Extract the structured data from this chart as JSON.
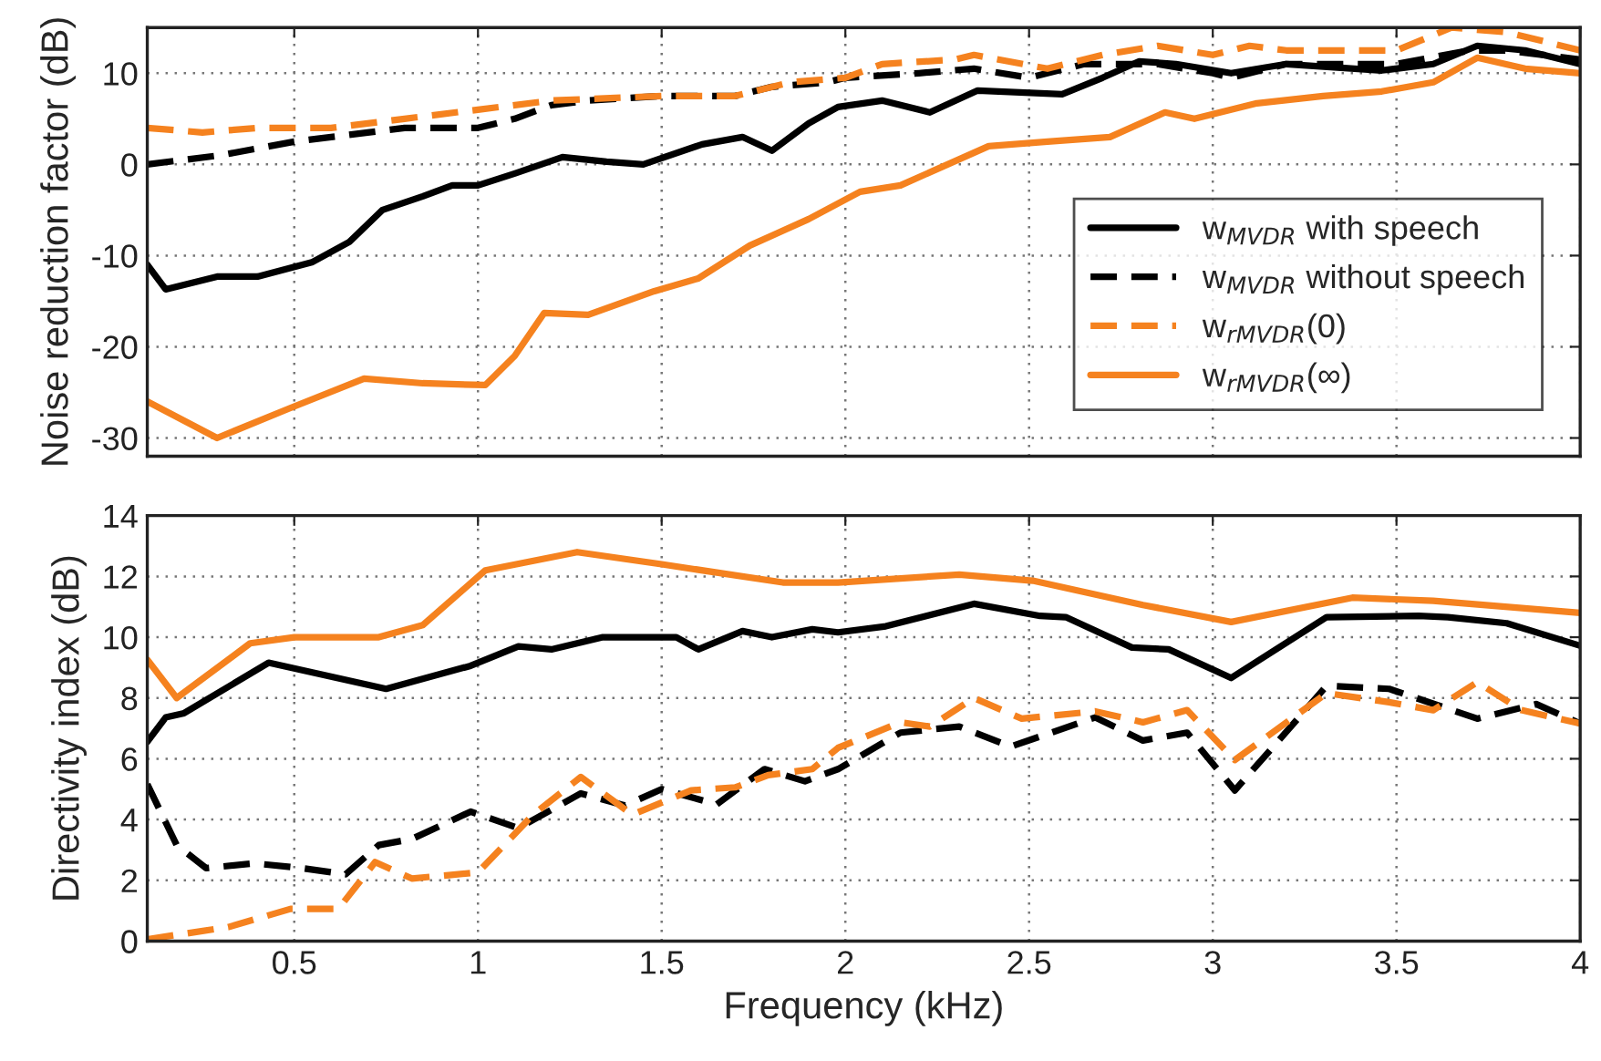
{
  "chart_data": [
    {
      "type": "line",
      "ylabel": "Noise reduction factor (dB)",
      "xlim": [
        0.1,
        4
      ],
      "ylim": [
        -32,
        15
      ],
      "xticks": [
        0.5,
        1,
        1.5,
        2,
        2.5,
        3,
        3.5,
        4
      ],
      "yticks": [
        -30,
        -20,
        -10,
        0,
        10
      ],
      "tick_labels": "y",
      "grid": true,
      "legend": "lower right",
      "marker": "none",
      "series": [
        {
          "name": "w$_{MVDR}$ with speech",
          "color": "#000000",
          "line_style": "solid",
          "x": [
            0.1,
            0.15,
            0.29,
            0.4,
            0.55,
            0.65,
            0.74,
            0.85,
            0.93,
            1.0,
            1.1,
            1.23,
            1.35,
            1.45,
            1.61,
            1.72,
            1.8,
            1.9,
            1.98,
            2.1,
            2.23,
            2.36,
            2.59,
            2.7,
            2.8,
            2.9,
            3.05,
            3.2,
            3.46,
            3.6,
            3.72,
            3.85,
            4.0
          ],
          "values": [
            -11,
            -13.7,
            -12.3,
            -12.3,
            -10.7,
            -8.5,
            -5,
            -3.5,
            -2.3,
            -2.3,
            -1,
            0.8,
            0.3,
            0,
            2.2,
            3,
            1.5,
            4.5,
            6.3,
            7,
            5.7,
            8.1,
            7.7,
            9.5,
            11.3,
            11,
            10,
            11,
            10.3,
            11,
            13,
            12.5,
            11
          ]
        },
        {
          "name": "w$_{MVDR}$ without speech",
          "color": "#000000",
          "line_style": "dashed",
          "x": [
            0.1,
            0.3,
            0.5,
            0.7,
            0.8,
            1.0,
            1.1,
            1.2,
            1.3,
            1.5,
            1.7,
            1.8,
            1.95,
            2.0,
            2.2,
            2.35,
            2.5,
            2.65,
            2.85,
            3.0,
            3.05,
            3.2,
            3.5,
            3.7,
            3.8,
            4.0
          ],
          "values": [
            0,
            1,
            2.5,
            3.5,
            4,
            4,
            5,
            6.5,
            7,
            7.5,
            7.5,
            8.5,
            9,
            9.5,
            10,
            10.5,
            9.5,
            11,
            11,
            10,
            9.5,
            11,
            11,
            12.5,
            12.5,
            11.5
          ]
        },
        {
          "name": "w$_{rMVDR}$(0)",
          "color": "#f5821f",
          "line_style": "dashed",
          "x": [
            0.1,
            0.25,
            0.4,
            0.6,
            0.8,
            1.0,
            1.2,
            1.5,
            1.7,
            1.85,
            2.0,
            2.1,
            2.3,
            2.35,
            2.55,
            2.7,
            2.85,
            3.0,
            3.1,
            3.2,
            3.5,
            3.65,
            3.8,
            4.0
          ],
          "values": [
            4,
            3.5,
            4,
            4,
            5,
            6,
            7,
            7.5,
            7.5,
            9,
            9.5,
            11,
            11.5,
            12,
            10.5,
            12,
            13,
            12,
            13,
            12.5,
            12.5,
            15,
            14.5,
            12.5
          ]
        },
        {
          "name": "w$_{rMVDR}$(∞)",
          "color": "#f5821f",
          "line_style": "solid",
          "x": [
            0.1,
            0.29,
            0.49,
            0.69,
            0.85,
            1.02,
            1.1,
            1.18,
            1.3,
            1.48,
            1.6,
            1.74,
            1.9,
            2.04,
            2.15,
            2.39,
            2.55,
            2.72,
            2.87,
            2.95,
            3.12,
            3.3,
            3.46,
            3.6,
            3.72,
            3.85,
            4.0
          ],
          "values": [
            -26,
            -30,
            -26.7,
            -23.5,
            -24,
            -24.2,
            -21,
            -16.3,
            -16.5,
            -13.9,
            -12.5,
            -8.9,
            -6,
            -3,
            -2.3,
            2,
            2.5,
            3,
            5.7,
            5,
            6.7,
            7.5,
            8,
            9,
            11.7,
            10.5,
            10
          ]
        }
      ]
    },
    {
      "type": "line",
      "xlabel": "Frequency (kHz)",
      "ylabel": "Directivity index (dB)",
      "xlim": [
        0.1,
        4
      ],
      "ylim": [
        0,
        14
      ],
      "xticks": [
        0.5,
        1,
        1.5,
        2,
        2.5,
        3,
        3.5,
        4
      ],
      "yticks": [
        0,
        2,
        4,
        6,
        8,
        10,
        12,
        14
      ],
      "grid": true,
      "marker": "none",
      "series": [
        {
          "color": "#000000",
          "line_style": "solid",
          "x": [
            0.1,
            0.15,
            0.2,
            0.43,
            0.75,
            0.98,
            1.11,
            1.2,
            1.34,
            1.54,
            1.6,
            1.72,
            1.8,
            1.91,
            1.98,
            2.11,
            2.35,
            2.53,
            2.6,
            2.78,
            2.88,
            3.05,
            3.31,
            3.56,
            3.64,
            3.8,
            4.0
          ],
          "values": [
            6.56,
            7.36,
            7.5,
            9.16,
            8.3,
            9.06,
            9.7,
            9.6,
            10,
            10,
            9.6,
            10.2,
            10,
            10.26,
            10.16,
            10.36,
            11.1,
            10.7,
            10.66,
            9.66,
            9.6,
            8.66,
            10.66,
            10.7,
            10.66,
            10.46,
            9.72
          ]
        },
        {
          "color": "#000000",
          "line_style": "dashed",
          "x": [
            0.1,
            0.18,
            0.26,
            0.39,
            0.52,
            0.64,
            0.73,
            0.82,
            0.98,
            1.11,
            1.28,
            1.4,
            1.5,
            1.65,
            1.78,
            1.89,
            1.98,
            2.15,
            2.31,
            2.45,
            2.68,
            2.81,
            2.93,
            3.06,
            3.31,
            3.48,
            3.72,
            3.88,
            4.0
          ],
          "values": [
            5.16,
            3.16,
            2.4,
            2.56,
            2.4,
            2.2,
            3.16,
            3.36,
            4.26,
            3.72,
            4.86,
            4.46,
            5.0,
            4.5,
            5.66,
            5.26,
            5.66,
            6.86,
            7.06,
            6.4,
            7.36,
            6.6,
            6.86,
            4.96,
            8.4,
            8.3,
            7.32,
            7.8,
            7.16
          ]
        },
        {
          "color": "#f5821f",
          "line_style": "dashed",
          "x": [
            0.1,
            0.32,
            0.49,
            0.62,
            0.72,
            0.82,
            1.0,
            1.15,
            1.28,
            1.42,
            1.58,
            1.7,
            1.79,
            1.91,
            1.98,
            2.15,
            2.23,
            2.35,
            2.48,
            2.68,
            2.81,
            2.93,
            3.06,
            3.31,
            3.48,
            3.6,
            3.72,
            3.84,
            4.0
          ],
          "values": [
            0.06,
            0.46,
            1.06,
            1.06,
            2.6,
            2.06,
            2.26,
            4.16,
            5.4,
            4.16,
            4.96,
            5.06,
            5.46,
            5.66,
            6.36,
            7.2,
            7.06,
            8.0,
            7.32,
            7.56,
            7.2,
            7.6,
            5.96,
            8.16,
            7.86,
            7.6,
            8.52,
            7.6,
            7.16
          ]
        },
        {
          "color": "#f5821f",
          "line_style": "solid",
          "x": [
            0.1,
            0.18,
            0.38,
            0.5,
            0.73,
            0.85,
            1.02,
            1.27,
            1.5,
            1.83,
            1.98,
            2.31,
            2.51,
            2.81,
            3.05,
            3.38,
            3.6,
            4.0
          ],
          "values": [
            9.26,
            8.0,
            9.8,
            10,
            10,
            10.4,
            12.2,
            12.8,
            12.4,
            11.8,
            11.8,
            12.06,
            11.86,
            11.06,
            10.5,
            11.3,
            11.2,
            10.8
          ]
        }
      ]
    }
  ]
}
